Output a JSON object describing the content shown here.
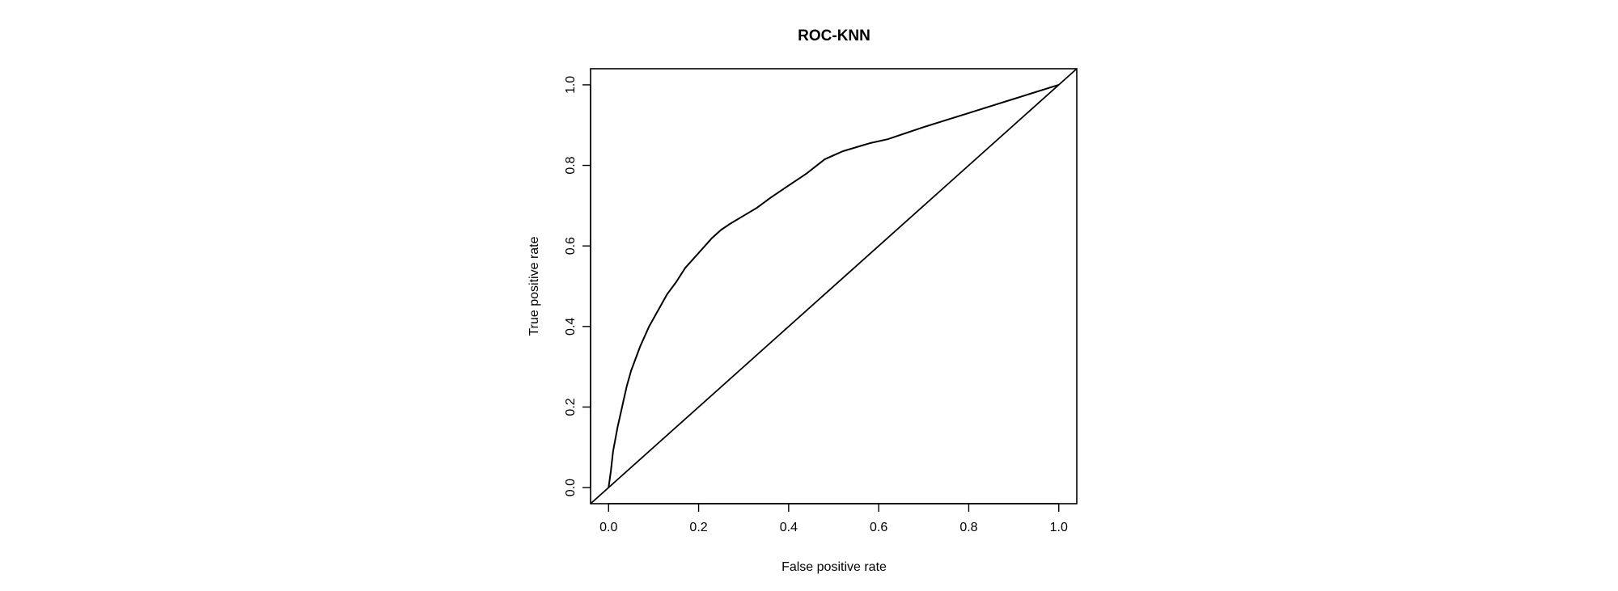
{
  "chart_data": {
    "type": "line",
    "title": "ROC-KNN",
    "xlabel": "False positive rate",
    "ylabel": "True positive rate",
    "xlim": [
      -0.04,
      1.04
    ],
    "ylim": [
      -0.04,
      1.04
    ],
    "xticks": [
      0.0,
      0.2,
      0.4,
      0.6,
      0.8,
      1.0
    ],
    "xtick_labels": [
      "0.0",
      "0.2",
      "0.4",
      "0.6",
      "0.8",
      "1.0"
    ],
    "yticks": [
      0.0,
      0.2,
      0.4,
      0.6,
      0.8,
      1.0
    ],
    "ytick_labels": [
      "0.0",
      "0.2",
      "0.4",
      "0.6",
      "0.8",
      "1.0"
    ],
    "grid": false,
    "legend": "none",
    "series": [
      {
        "x": [
          0.0,
          0.005,
          0.01,
          0.015,
          0.02,
          0.03,
          0.04,
          0.05,
          0.07,
          0.09,
          0.11,
          0.13,
          0.15,
          0.17,
          0.19,
          0.21,
          0.23,
          0.25,
          0.27,
          0.3,
          0.33,
          0.36,
          0.4,
          0.44,
          0.48,
          0.5,
          0.52,
          0.55,
          0.58,
          0.62,
          0.7,
          0.8,
          0.9,
          1.0
        ],
        "y": [
          0.0,
          0.04,
          0.09,
          0.12,
          0.15,
          0.2,
          0.25,
          0.29,
          0.35,
          0.4,
          0.44,
          0.48,
          0.51,
          0.545,
          0.57,
          0.595,
          0.62,
          0.64,
          0.655,
          0.675,
          0.695,
          0.72,
          0.75,
          0.78,
          0.815,
          0.825,
          0.835,
          0.845,
          0.855,
          0.865,
          0.895,
          0.93,
          0.965,
          1.0
        ]
      }
    ],
    "reference_line": {
      "x": [
        -0.04,
        1.04
      ],
      "y": [
        -0.04,
        1.04
      ]
    }
  }
}
